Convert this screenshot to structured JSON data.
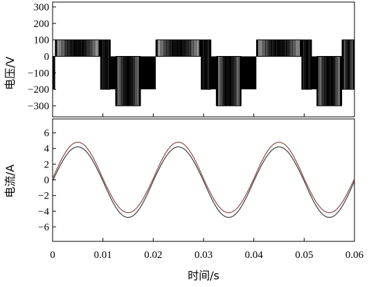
{
  "chart_data": [
    {
      "type": "line",
      "ylabel": "电压/V",
      "ylim": [
        -300,
        300
      ],
      "yticks": [
        "300",
        "200",
        "100",
        "0",
        "−100",
        "−200",
        "−300"
      ],
      "xlim": [
        0,
        0.06
      ],
      "levels": [
        {
          "x": [
            0.0,
            0.0005
          ],
          "v": -200
        },
        {
          "x": [
            0.0005,
            0.0095
          ],
          "v": 100,
          "pwm_to": 0
        },
        {
          "x": [
            0.0095,
            0.0115
          ],
          "v": 100,
          "pwm_to": -200
        },
        {
          "x": [
            0.0115,
            0.0125
          ],
          "v": -200
        },
        {
          "x": [
            0.0125,
            0.0175
          ],
          "v": 0,
          "pwm_to": -300
        },
        {
          "x": [
            0.0175,
            0.0205
          ],
          "v": -200
        },
        {
          "x": [
            0.0205,
            0.0295
          ],
          "v": 100,
          "pwm_to": 0
        },
        {
          "x": [
            0.0295,
            0.0315
          ],
          "v": 100,
          "pwm_to": -200
        },
        {
          "x": [
            0.0315,
            0.0325
          ],
          "v": -200
        },
        {
          "x": [
            0.0325,
            0.0375
          ],
          "v": 0,
          "pwm_to": -300
        },
        {
          "x": [
            0.0375,
            0.0405
          ],
          "v": -200
        },
        {
          "x": [
            0.0405,
            0.0495
          ],
          "v": 100,
          "pwm_to": 0
        },
        {
          "x": [
            0.0495,
            0.0515
          ],
          "v": 100,
          "pwm_to": -200
        },
        {
          "x": [
            0.0515,
            0.0525
          ],
          "v": -200
        },
        {
          "x": [
            0.0525,
            0.0575
          ],
          "v": 0,
          "pwm_to": -300
        },
        {
          "x": [
            0.0575,
            0.06
          ],
          "v": 100,
          "pwm_to": -200
        }
      ],
      "color": "#000000"
    },
    {
      "type": "line",
      "ylabel": "电流/A",
      "xlabel": "时间/s",
      "ylim": [
        -8,
        7
      ],
      "yticks": [
        "6",
        "4",
        "2",
        "0",
        "−2",
        "−4",
        "−6"
      ],
      "xlim": [
        0,
        0.06
      ],
      "xticks": [
        "0",
        "0.01",
        "0.02",
        "0.03",
        "0.04",
        "0.05",
        "0.06"
      ],
      "series": [
        {
          "amplitude": 4.5,
          "frequency": 50,
          "ripple": 0.15,
          "color": "#8a4a4a"
        }
      ]
    }
  ]
}
